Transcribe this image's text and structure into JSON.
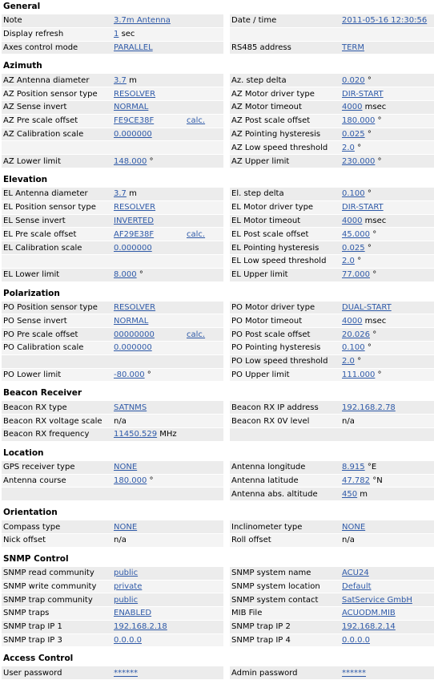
{
  "sections": [
    {
      "title": "General",
      "rows": [
        {
          "l1": "Note",
          "v1": "3.7m Antenna",
          "u1": "",
          "calc": "",
          "l2": "Date / time",
          "v2": "2011-05-16 12:30:56",
          "u2": ""
        },
        {
          "l1": "Display refresh",
          "v1": "1",
          "u1": "sec",
          "calc": "",
          "l2": "",
          "v2": "",
          "u2": ""
        },
        {
          "l1": "Axes control mode",
          "v1": "PARALLEL",
          "u1": "",
          "calc": "",
          "l2": "RS485 address",
          "v2": "TERM",
          "u2": ""
        }
      ]
    },
    {
      "title": "Azimuth",
      "rows": [
        {
          "l1": "AZ Antenna diameter",
          "v1": "3.7",
          "u1": "m",
          "calc": "",
          "l2": "Az. step delta",
          "v2": "0.020",
          "u2": "°"
        },
        {
          "l1": "AZ Position sensor type",
          "v1": "RESOLVER",
          "u1": "",
          "calc": "",
          "l2": "AZ Motor driver type",
          "v2": "DIR-START",
          "u2": ""
        },
        {
          "l1": "AZ Sense invert",
          "v1": "NORMAL",
          "u1": "",
          "calc": "",
          "l2": "AZ Motor timeout",
          "v2": "4000",
          "u2": "msec"
        },
        {
          "l1": "AZ Pre scale offset",
          "v1": "FE9CE38F",
          "u1": "",
          "calc": "calc.",
          "l2": "AZ Post scale offset",
          "v2": "180.000",
          "u2": "°"
        },
        {
          "l1": "AZ Calibration scale",
          "v1": "0.000000",
          "u1": "",
          "calc": "",
          "l2": "AZ Pointing hysteresis",
          "v2": "0.025",
          "u2": "°"
        },
        {
          "l1": "",
          "v1": "",
          "u1": "",
          "calc": "",
          "l2": "AZ Low speed threshold",
          "v2": "2.0",
          "u2": "°"
        },
        {
          "l1": "AZ Lower limit",
          "v1": "148.000",
          "u1": "°",
          "calc": "",
          "l2": "AZ Upper limit",
          "v2": "230.000",
          "u2": "°"
        }
      ]
    },
    {
      "title": "Elevation",
      "rows": [
        {
          "l1": "EL Antenna diameter",
          "v1": "3.7",
          "u1": "m",
          "calc": "",
          "l2": "El. step delta",
          "v2": "0.100",
          "u2": "°"
        },
        {
          "l1": "EL Position sensor type",
          "v1": "RESOLVER",
          "u1": "",
          "calc": "",
          "l2": "EL Motor driver type",
          "v2": "DIR-START",
          "u2": ""
        },
        {
          "l1": "EL Sense invert",
          "v1": "INVERTED",
          "u1": "",
          "calc": "",
          "l2": "EL Motor timeout",
          "v2": "4000",
          "u2": "msec"
        },
        {
          "l1": "EL Pre scale offset",
          "v1": "AF29E38F",
          "u1": "",
          "calc": "calc.",
          "l2": "EL Post scale offset",
          "v2": "45.000",
          "u2": "°"
        },
        {
          "l1": "EL Calibration scale",
          "v1": "0.000000",
          "u1": "",
          "calc": "",
          "l2": "EL Pointing hysteresis",
          "v2": "0.025",
          "u2": "°"
        },
        {
          "l1": "",
          "v1": "",
          "u1": "",
          "calc": "",
          "l2": "EL Low speed threshold",
          "v2": "2.0",
          "u2": "°"
        },
        {
          "l1": "EL Lower limit",
          "v1": "8.000",
          "u1": "°",
          "calc": "",
          "l2": "EL Upper limit",
          "v2": "77.000",
          "u2": "°"
        }
      ]
    },
    {
      "title": "Polarization",
      "rows": [
        {
          "l1": "PO Position sensor type",
          "v1": "RESOLVER",
          "u1": "",
          "calc": "",
          "l2": "PO Motor driver type",
          "v2": "DUAL-START",
          "u2": ""
        },
        {
          "l1": "PO Sense invert",
          "v1": "NORMAL",
          "u1": "",
          "calc": "",
          "l2": "PO Motor timeout",
          "v2": "4000",
          "u2": "msec"
        },
        {
          "l1": "PO Pre scale offset",
          "v1": "00000000",
          "u1": "",
          "calc": "calc.",
          "l2": "PO Post scale offset",
          "v2": "20.026",
          "u2": "°"
        },
        {
          "l1": "PO Calibration scale",
          "v1": "0.000000",
          "u1": "",
          "calc": "",
          "l2": "PO Pointing hysteresis",
          "v2": "0.100",
          "u2": "°"
        },
        {
          "l1": "",
          "v1": "",
          "u1": "",
          "calc": "",
          "l2": "PO Low speed threshold",
          "v2": "2.0",
          "u2": "°"
        },
        {
          "l1": "PO Lower limit",
          "v1": "-80.000",
          "u1": "°",
          "calc": "",
          "l2": "PO Upper limit",
          "v2": "111.000",
          "u2": "°"
        }
      ]
    },
    {
      "title": "Beacon Receiver",
      "rows": [
        {
          "l1": "Beacon RX type",
          "v1": "SATNMS",
          "u1": "",
          "calc": "",
          "l2": "Beacon RX IP address",
          "v2": "192.168.2.78",
          "u2": ""
        },
        {
          "l1": "Beacon RX voltage scale",
          "v1": "n/a",
          "u1": "",
          "calc": "",
          "l2": "Beacon RX 0V level",
          "v2": "n/a",
          "u2": "",
          "plain1": true,
          "plain2": true
        },
        {
          "l1": "Beacon RX frequency",
          "v1": "11450.529",
          "u1": "MHz",
          "calc": "",
          "l2": "",
          "v2": "",
          "u2": ""
        }
      ]
    },
    {
      "title": "Location",
      "rows": [
        {
          "l1": "GPS receiver type",
          "v1": "NONE",
          "u1": "",
          "calc": "",
          "l2": "Antenna longitude",
          "v2": "8.915",
          "u2": "°E"
        },
        {
          "l1": "Antenna course",
          "v1": "180.000",
          "u1": "°",
          "calc": "",
          "l2": "Antenna latitude",
          "v2": "47.782",
          "u2": "°N"
        },
        {
          "l1": "",
          "v1": "",
          "u1": "",
          "calc": "",
          "l2": "Antenna abs. altitude",
          "v2": "450",
          "u2": "m"
        }
      ]
    },
    {
      "title": "Orientation",
      "rows": [
        {
          "l1": "Compass type",
          "v1": "NONE",
          "u1": "",
          "calc": "",
          "l2": "Inclinometer type",
          "v2": "NONE",
          "u2": ""
        },
        {
          "l1": "Nick offset",
          "v1": "n/a",
          "u1": "",
          "calc": "",
          "l2": "Roll offset",
          "v2": "n/a",
          "u2": "",
          "plain1": true,
          "plain2": true
        }
      ]
    },
    {
      "title": "SNMP Control",
      "rows": [
        {
          "l1": "SNMP read community",
          "v1": "public",
          "u1": "",
          "calc": "",
          "l2": "SNMP system name",
          "v2": "ACU24",
          "u2": ""
        },
        {
          "l1": "SNMP write community",
          "v1": "private",
          "u1": "",
          "calc": "",
          "l2": "SNMP system location",
          "v2": "Default",
          "u2": ""
        },
        {
          "l1": "SNMP trap community",
          "v1": "public",
          "u1": "",
          "calc": "",
          "l2": "SNMP system contact",
          "v2": "SatService GmbH",
          "u2": ""
        },
        {
          "l1": "SNMP traps",
          "v1": "ENABLED",
          "u1": "",
          "calc": "",
          "l2": "MIB File",
          "v2": "ACUODM.MIB",
          "u2": ""
        },
        {
          "l1": "SNMP trap IP 1",
          "v1": "192.168.2.18",
          "u1": "",
          "calc": "",
          "l2": "SNMP trap IP 2",
          "v2": "192.168.2.14",
          "u2": ""
        },
        {
          "l1": "SNMP trap IP 3",
          "v1": "0.0.0.0",
          "u1": "",
          "calc": "",
          "l2": "SNMP trap IP 4",
          "v2": "0.0.0.0",
          "u2": ""
        }
      ]
    },
    {
      "title": "Access Control",
      "rows": [
        {
          "l1": "User password",
          "v1": "******",
          "u1": "",
          "calc": "",
          "l2": "Admin password",
          "v2": "******",
          "u2": ""
        }
      ]
    }
  ]
}
